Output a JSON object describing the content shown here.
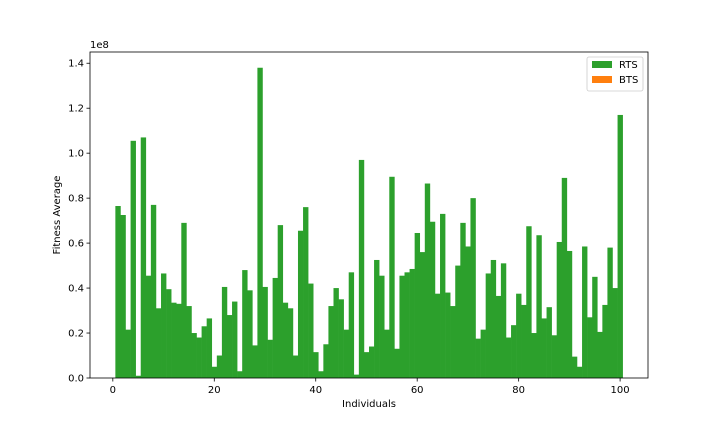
{
  "chart_data": {
    "type": "bar",
    "xlabel": "Individuals",
    "ylabel": "Fitness Average",
    "offset_text": "1e8",
    "xlim": [
      -4.5,
      105.5
    ],
    "ylim": [
      0,
      145000000
    ],
    "xticks": [
      0,
      20,
      40,
      60,
      80,
      100
    ],
    "yticks": [
      0,
      20000000,
      40000000,
      60000000,
      80000000,
      100000000,
      120000000,
      140000000
    ],
    "ytick_labels": [
      "0.0",
      "0.2",
      "0.4",
      "0.6",
      "0.8",
      "1.0",
      "1.2",
      "1.4"
    ],
    "grid": false,
    "legend_position": "top-right",
    "series": [
      {
        "name": "RTS",
        "color": "#2ca02c",
        "x": [
          1,
          2,
          3,
          4,
          5,
          6,
          7,
          8,
          9,
          10,
          11,
          12,
          13,
          14,
          15,
          16,
          17,
          18,
          19,
          20,
          21,
          22,
          23,
          24,
          25,
          26,
          27,
          28,
          29,
          30,
          31,
          32,
          33,
          34,
          35,
          36,
          37,
          38,
          39,
          40,
          41,
          42,
          43,
          44,
          45,
          46,
          47,
          48,
          49,
          50,
          51,
          52,
          53,
          54,
          55,
          56,
          57,
          58,
          59,
          60,
          61,
          62,
          63,
          64,
          65,
          66,
          67,
          68,
          69,
          70,
          71,
          72,
          73,
          74,
          75,
          76,
          77,
          78,
          79,
          80,
          81,
          82,
          83,
          84,
          85,
          86,
          87,
          88,
          89,
          90,
          91,
          92,
          93,
          94,
          95,
          96,
          97,
          98,
          99,
          100
        ],
        "values": [
          76500000,
          72500000,
          21500000,
          105500000,
          1000000,
          107000000,
          45500000,
          77000000,
          31000000,
          46500000,
          39500000,
          33500000,
          33000000,
          69000000,
          32000000,
          20000000,
          18000000,
          23000000,
          26500000,
          5000000,
          10000000,
          40500000,
          28000000,
          34000000,
          3000000,
          48000000,
          39000000,
          14500000,
          138000000,
          40500000,
          17000000,
          44500000,
          68000000,
          33500000,
          31000000,
          10000000,
          65500000,
          76000000,
          42000000,
          11500000,
          3000000,
          15000000,
          32000000,
          40000000,
          35000000,
          21500000,
          47000000,
          1500000,
          97000000,
          11500000,
          14000000,
          52500000,
          45500000,
          21500000,
          89500000,
          13000000,
          45500000,
          47000000,
          48500000,
          64500000,
          56000000,
          86500000,
          69500000,
          37500000,
          73000000,
          38000000,
          32000000,
          50000000,
          69000000,
          58500000,
          80000000,
          17500000,
          21500000,
          46500000,
          52500000,
          36500000,
          51000000,
          18000000,
          23500000,
          37500000,
          32500000,
          67500000,
          20000000,
          63500000,
          26500000,
          31500000,
          19000000,
          60500000,
          89000000,
          56500000,
          9500000,
          5000000,
          58500000,
          27000000,
          45000000,
          20500000,
          32500000,
          58000000,
          40000000,
          117000000
        ]
      },
      {
        "name": "BTS",
        "color": "#ff7f0e",
        "x": [],
        "values": []
      }
    ]
  }
}
